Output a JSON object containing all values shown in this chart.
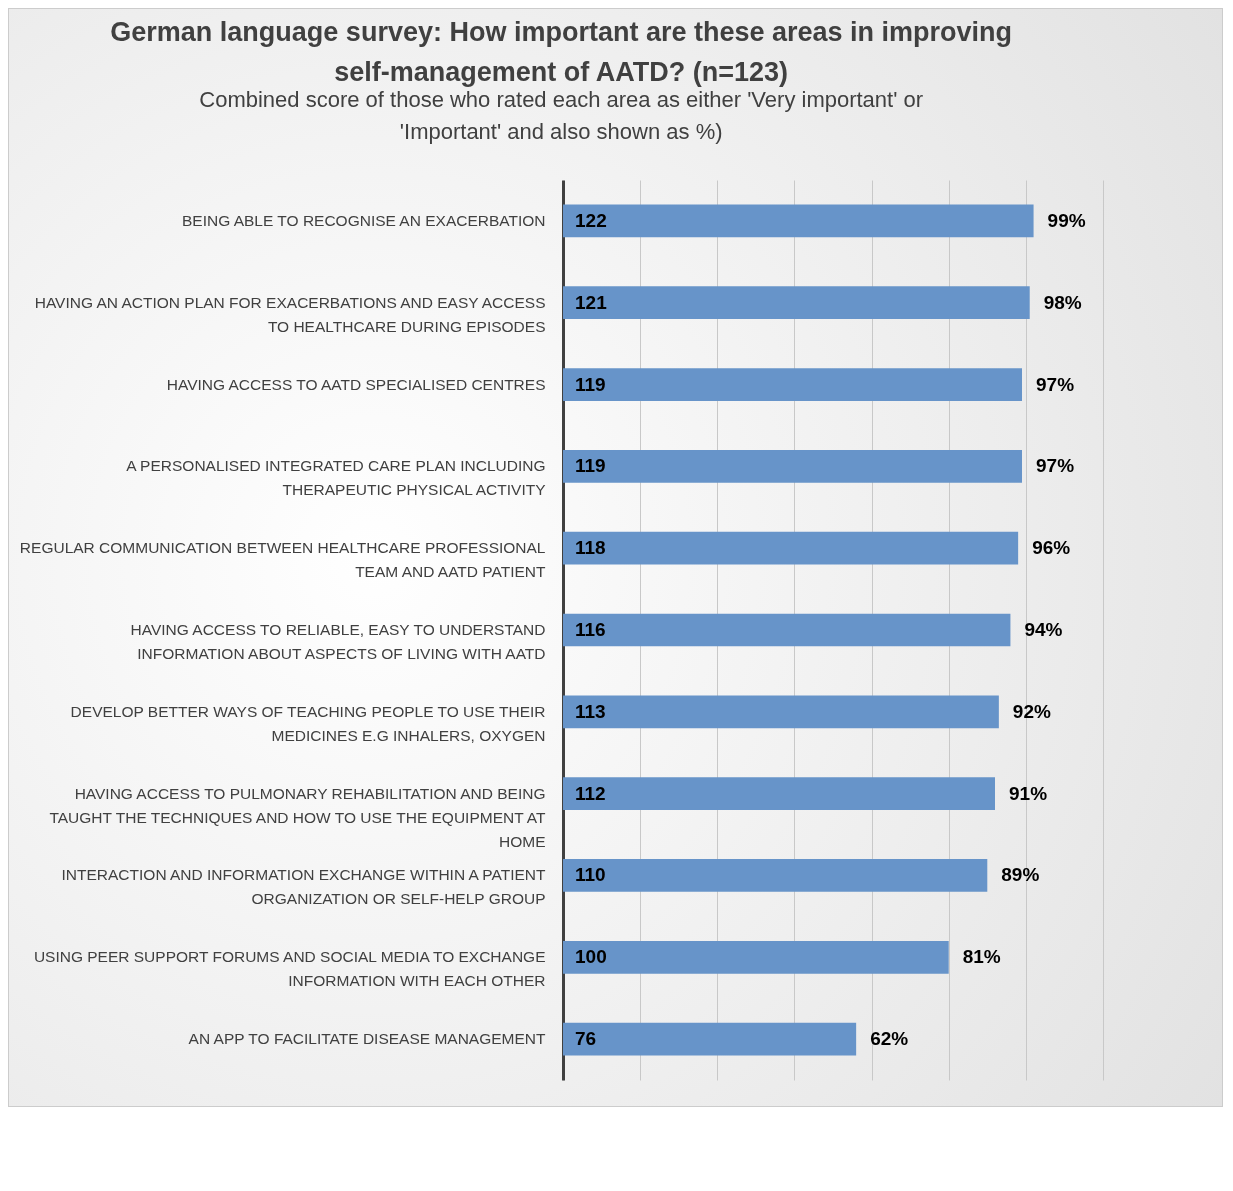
{
  "chart_data": {
    "type": "bar",
    "orientation": "horizontal",
    "title": "German language survey: How important are these areas in improving self-management of AATD? (n=123)",
    "subtitle": "Combined score of those who rated each area as either 'Very important' or 'Important' and also shown as %)",
    "categories": [
      "BEING ABLE TO RECOGNISE AN EXACERBATION",
      "HAVING AN ACTION PLAN FOR EXACERBATIONS AND EASY ACCESS TO HEALTHCARE DURING EPISODES",
      "HAVING ACCESS TO AATD SPECIALISED CENTRES",
      "A PERSONALISED INTEGRATED CARE PLAN INCLUDING THERAPEUTIC PHYSICAL ACTIVITY",
      "REGULAR COMMUNICATION BETWEEN HEALTHCARE PROFESSIONAL TEAM AND AATD PATIENT",
      "HAVING ACCESS TO RELIABLE, EASY TO UNDERSTAND INFORMATION ABOUT ASPECTS OF LIVING WITH AATD",
      "DEVELOP BETTER WAYS OF TEACHING PEOPLE TO USE THEIR MEDICINES E.G INHALERS, OXYGEN",
      "HAVING ACCESS TO PULMONARY REHABILITATION AND BEING TAUGHT THE TECHNIQUES AND HOW TO USE THE EQUIPMENT AT HOME",
      "INTERACTION AND INFORMATION EXCHANGE WITHIN A PATIENT ORGANIZATION OR SELF-HELP GROUP",
      "USING PEER SUPPORT FORUMS AND SOCIAL MEDIA TO EXCHANGE INFORMATION WITH EACH OTHER",
      "AN APP TO FACILITATE DISEASE MANAGEMENT"
    ],
    "values": [
      122,
      121,
      119,
      119,
      118,
      116,
      113,
      112,
      110,
      100,
      76
    ],
    "color": "#6794c9",
    "data_labels": true,
    "xlim": [
      0,
      140
    ],
    "xticks": [
      {
        "value": 0,
        "label": null
      },
      {
        "value": 20,
        "label": null
      },
      {
        "value": 40,
        "label": null
      },
      {
        "value": 60,
        "label": null
      },
      {
        "value": 80,
        "label": null
      },
      {
        "value": 100,
        "label": null
      },
      {
        "value": 120,
        "label": null
      },
      {
        "value": 140,
        "label": null
      }
    ],
    "grid": "x",
    "tick_labels": "y",
    "annotations": [
      {
        "text": "99%",
        "x": 122,
        "y": "BEING ABLE TO RECOGNISE AN EXACERBATION"
      },
      {
        "text": "98%",
        "x": 121,
        "y": "HAVING AN ACTION PLAN FOR EXACERBATIONS AND EASY ACCESS TO HEALTHCARE DURING EPISODES"
      },
      {
        "text": "97%",
        "x": 119,
        "y": "HAVING ACCESS TO AATD SPECIALISED CENTRES"
      },
      {
        "text": "97%",
        "x": 119,
        "y": "A PERSONALISED INTEGRATED CARE PLAN INCLUDING THERAPEUTIC PHYSICAL ACTIVITY"
      },
      {
        "text": "96%",
        "x": 118,
        "y": "REGULAR COMMUNICATION BETWEEN HEALTHCARE PROFESSIONAL TEAM AND AATD PATIENT"
      },
      {
        "text": "94%",
        "x": 116,
        "y": "HAVING ACCESS TO RELIABLE, EASY TO UNDERSTAND INFORMATION ABOUT ASPECTS OF LIVING WITH AATD"
      },
      {
        "text": "92%",
        "x": 113,
        "y": "DEVELOP BETTER WAYS OF TEACHING PEOPLE TO USE THEIR MEDICINES E.G INHALERS, OXYGEN"
      },
      {
        "text": "91%",
        "x": 112,
        "y": "HAVING ACCESS TO PULMONARY REHABILITATION AND BEING TAUGHT THE TECHNIQUES AND HOW TO USE THE EQUIPMENT AT HOME"
      },
      {
        "text": "89%",
        "x": 110,
        "y": "INTERACTION AND INFORMATION EXCHANGE WITHIN A PATIENT ORGANIZATION OR SELF-HELP GROUP"
      },
      {
        "text": "81%",
        "x": 100,
        "y": "USING PEER SUPPORT FORUMS AND SOCIAL MEDIA TO EXCHANGE INFORMATION WITH EACH OTHER"
      },
      {
        "text": "62%",
        "x": 76,
        "y": "AN APP TO FACILITATE DISEASE MANAGEMENT"
      }
    ]
  }
}
